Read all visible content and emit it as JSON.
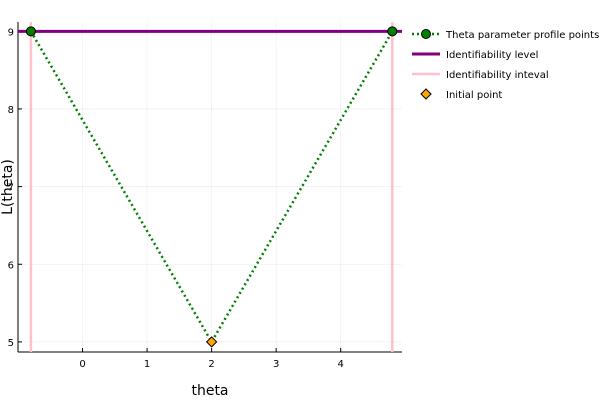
{
  "chart_data": {
    "type": "line",
    "xlabel": "theta",
    "ylabel": "L(theta)",
    "xlim": [
      -1.0,
      4.95
    ],
    "ylim": [
      4.87,
      9.12
    ],
    "xticks": [
      0,
      1,
      2,
      3,
      4
    ],
    "yticks": [
      5,
      6,
      7,
      8,
      9
    ],
    "grid": true,
    "legend_position": "top-right-outside",
    "series": [
      {
        "name": "Theta parameter profile points",
        "style": "dotted-line-with-markers",
        "color": "#008000",
        "x": [
          -0.8,
          2.0,
          4.8
        ],
        "y": [
          9.0,
          5.0,
          9.0
        ]
      },
      {
        "name": "Identifiability level",
        "style": "horizontal-line",
        "color": "#800080",
        "y": 9.0
      },
      {
        "name": "Identifiability inteval",
        "style": "vertical-lines",
        "color": "#ffc0cb",
        "x": [
          -0.8,
          4.8
        ]
      },
      {
        "name": "Initial point",
        "style": "diamond-marker",
        "color": "#ffa500",
        "x": [
          2.0
        ],
        "y": [
          5.0
        ]
      }
    ]
  }
}
